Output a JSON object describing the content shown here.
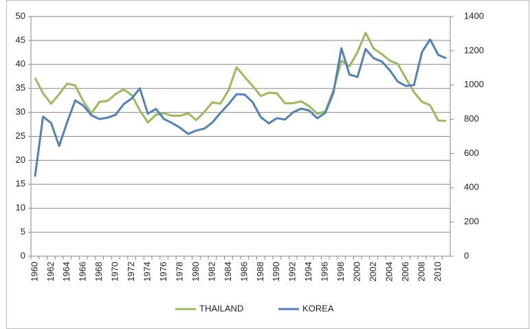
{
  "chart_data": {
    "type": "line",
    "categories": [
      "1960",
      null,
      "1962",
      null,
      "1964",
      null,
      "1966",
      null,
      "1968",
      null,
      "1970",
      null,
      "1972",
      null,
      "1974",
      null,
      "1976",
      null,
      "1978",
      null,
      "1980",
      null,
      "1982",
      null,
      "1984",
      null,
      "1986",
      null,
      "1988",
      null,
      "1990",
      null,
      "1992",
      null,
      "1994",
      null,
      "1996",
      null,
      "1998",
      null,
      "2000",
      null,
      "2002",
      null,
      "2004",
      null,
      "2006",
      null,
      "2008",
      null,
      "2010",
      null
    ],
    "series": [
      {
        "name": "THAILAND",
        "color": "#9bbb59",
        "values": [
          37.2,
          34,
          31.8,
          33.8,
          36,
          35.6,
          32.3,
          29.8,
          32.2,
          32.4,
          33.8,
          34.8,
          33.6,
          30.4,
          27.9,
          29.5,
          29.8,
          29.3,
          29.3,
          29.8,
          28.4,
          30.1,
          32.1,
          31.8,
          34.6,
          39.4,
          37.4,
          35.5,
          33.4,
          34.1,
          34.0,
          31.9,
          31.9,
          32.3,
          31.3,
          29.7,
          30.2,
          34.6,
          40.8,
          39.6,
          42.6,
          46.6,
          43.3,
          42.2,
          40.8,
          40.1,
          37.1,
          34.2,
          32.2,
          31.5,
          28.3,
          28.2
        ]
      },
      {
        "name": "KOREA",
        "color": "#4f81bd",
        "axis": "y2",
        "values": [
          465,
          815,
          778,
          644,
          784,
          910,
          879,
          823,
          801,
          809,
          826,
          888,
          921,
          980,
          832,
          860,
          801,
          778,
          750,
          714,
          734,
          745,
          781,
          837,
          888,
          946,
          944,
          899,
          812,
          776,
          806,
          798,
          840,
          862,
          851,
          806,
          837,
          952,
          1215,
          1061,
          1047,
          1210,
          1156,
          1137,
          1086,
          1019,
          994,
          1000,
          1193,
          1266,
          1176,
          1156
        ]
      }
    ],
    "ylim": [
      0,
      50
    ],
    "yticks": [
      0,
      5,
      10,
      15,
      20,
      25,
      30,
      35,
      40,
      45,
      50
    ],
    "y2lim": [
      0,
      1400
    ],
    "y2ticks": [
      0,
      200,
      400,
      600,
      800,
      1000,
      1200,
      1400
    ],
    "grid": true,
    "legend": "bottom"
  }
}
